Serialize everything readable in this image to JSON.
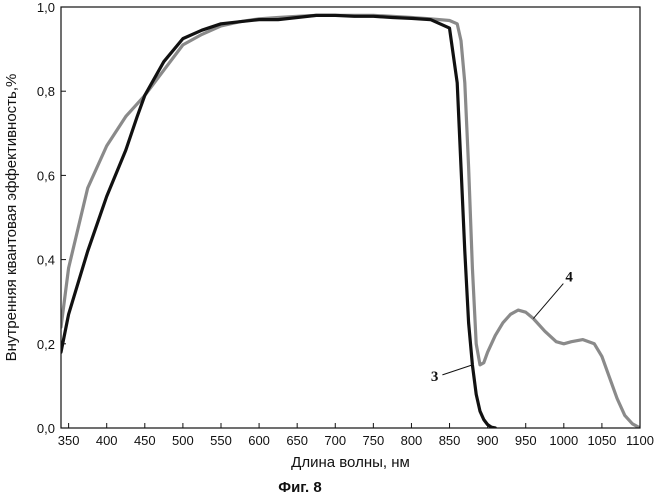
{
  "figure_caption": "Фиг. 8",
  "chart_data": {
    "type": "line",
    "title": "",
    "xlabel": "Длина волны, нм",
    "ylabel": "Внутренняя квантовая эффективность,%",
    "xlim": [
      340,
      1100
    ],
    "ylim": [
      0.0,
      1.0
    ],
    "x_ticks": [
      350,
      400,
      450,
      500,
      550,
      600,
      650,
      700,
      750,
      800,
      850,
      900,
      950,
      1000,
      1050,
      1100
    ],
    "y_ticks": [
      0.0,
      0.2,
      0.4,
      0.6,
      0.8,
      1.0
    ],
    "y_tick_labels": [
      "0,0",
      "0,2",
      "0,4",
      "0,6",
      "0,8",
      "1,0"
    ],
    "grid": false,
    "series": [
      {
        "name": "3",
        "color": "#111111",
        "x": [
          340,
          350,
          375,
          400,
          425,
          440,
          450,
          475,
          500,
          525,
          550,
          575,
          600,
          625,
          650,
          675,
          700,
          725,
          750,
          775,
          800,
          825,
          850,
          860,
          865,
          870,
          875,
          880,
          885,
          890,
          895,
          900,
          905,
          910
        ],
        "y": [
          0.18,
          0.27,
          0.42,
          0.55,
          0.66,
          0.74,
          0.79,
          0.87,
          0.925,
          0.945,
          0.96,
          0.965,
          0.97,
          0.97,
          0.975,
          0.98,
          0.98,
          0.978,
          0.978,
          0.975,
          0.973,
          0.97,
          0.95,
          0.82,
          0.62,
          0.42,
          0.25,
          0.15,
          0.08,
          0.04,
          0.02,
          0.008,
          0.002,
          0.0
        ]
      },
      {
        "name": "4",
        "color": "#8a8a8a",
        "x": [
          340,
          350,
          375,
          400,
          425,
          450,
          475,
          500,
          525,
          550,
          575,
          600,
          625,
          650,
          675,
          700,
          725,
          750,
          775,
          800,
          825,
          850,
          860,
          865,
          870,
          875,
          880,
          885,
          890,
          895,
          900,
          910,
          920,
          930,
          940,
          950,
          960,
          975,
          990,
          1000,
          1010,
          1025,
          1040,
          1050,
          1060,
          1070,
          1080,
          1090,
          1100
        ],
        "y": [
          0.24,
          0.38,
          0.57,
          0.67,
          0.74,
          0.79,
          0.85,
          0.91,
          0.935,
          0.955,
          0.965,
          0.972,
          0.975,
          0.978,
          0.98,
          0.98,
          0.98,
          0.98,
          0.978,
          0.975,
          0.972,
          0.968,
          0.96,
          0.92,
          0.82,
          0.62,
          0.38,
          0.2,
          0.15,
          0.155,
          0.18,
          0.22,
          0.25,
          0.27,
          0.28,
          0.275,
          0.26,
          0.23,
          0.205,
          0.2,
          0.205,
          0.21,
          0.2,
          0.17,
          0.12,
          0.07,
          0.03,
          0.01,
          0.0
        ]
      }
    ],
    "annotations": [
      {
        "text": "3",
        "series": "3",
        "x": 880
      },
      {
        "text": "4",
        "series": "4",
        "x": 960
      }
    ]
  }
}
